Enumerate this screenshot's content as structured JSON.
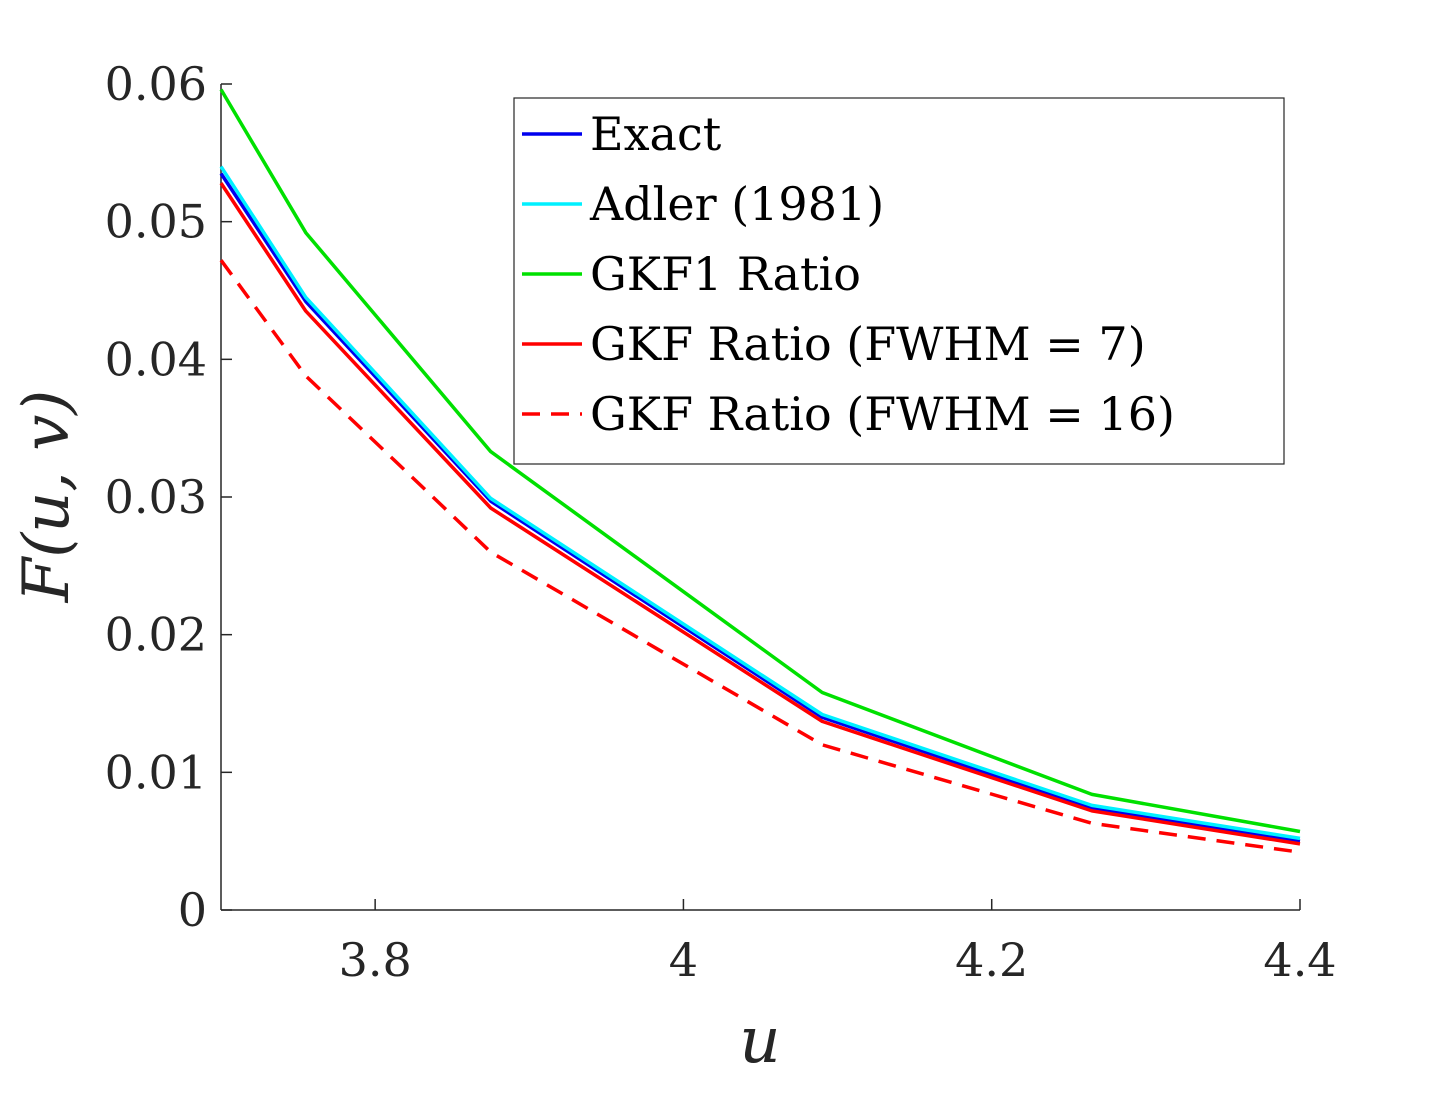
{
  "chart_data": {
    "type": "line",
    "title": "",
    "xlabel": "u",
    "ylabel": "F(u, v)",
    "xlim": [
      3.7,
      4.4
    ],
    "ylim": [
      0,
      0.06
    ],
    "xticks": [
      3.8,
      4.0,
      4.2,
      4.4
    ],
    "xtick_labels": [
      "3.8",
      "4",
      "4.2",
      "4.4"
    ],
    "yticks": [
      0,
      0.01,
      0.02,
      0.03,
      0.04,
      0.05,
      0.06
    ],
    "ytick_labels": [
      "0",
      "0.01",
      "0.02",
      "0.03",
      "0.04",
      "0.05",
      "0.06"
    ],
    "grid": false,
    "legend_position": "top-right",
    "x": [
      3.7,
      3.755,
      3.875,
      4.09,
      4.265,
      4.4
    ],
    "series": [
      {
        "name": "Exact",
        "color": "#0000ee",
        "dash": "solid",
        "values": [
          0.0535,
          0.0442,
          0.0297,
          0.014,
          0.0074,
          0.005
        ]
      },
      {
        "name": "Adler (1981)",
        "color": "#00f0ff",
        "dash": "solid",
        "values": [
          0.054,
          0.0445,
          0.0299,
          0.0142,
          0.0076,
          0.0052
        ]
      },
      {
        "name": "GKF1 Ratio",
        "color": "#00e000",
        "dash": "solid",
        "values": [
          0.0596,
          0.0492,
          0.0333,
          0.0158,
          0.0084,
          0.0057
        ]
      },
      {
        "name": "GKF Ratio (FWHM = 7)",
        "color": "#ff0000",
        "dash": "solid",
        "values": [
          0.0528,
          0.0435,
          0.0292,
          0.0137,
          0.0072,
          0.0048
        ]
      },
      {
        "name": "GKF Ratio (FWHM = 16)",
        "color": "#ff0000",
        "dash": "dashed",
        "values": [
          0.0472,
          0.0388,
          0.026,
          0.012,
          0.0063,
          0.0042
        ]
      }
    ]
  }
}
